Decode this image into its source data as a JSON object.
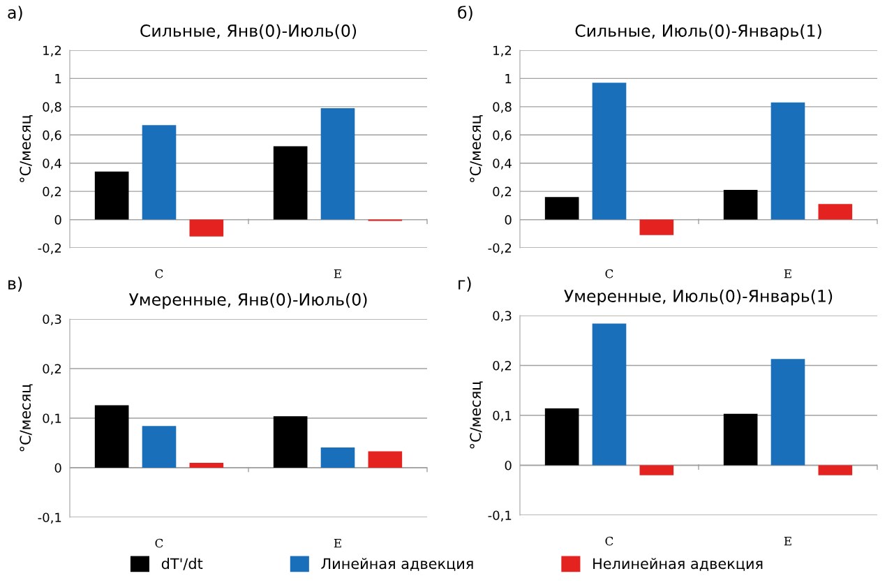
{
  "chart_data": [
    {
      "type": "bar",
      "title": "Сильные, Янв(0)-Июль(0)",
      "ylabel": "°C/месяц",
      "annotations": [
        "а)"
      ],
      "categories": [
        "C",
        "E"
      ],
      "grid": "y",
      "legend": "bottom",
      "ylim": [
        -0.2,
        1.2
      ],
      "yticks": [
        {
          "value": -0.2,
          "label": "-0,2"
        },
        0,
        {
          "value": 0.2,
          "label": "0,2"
        },
        {
          "value": 0.4,
          "label": "0,4"
        },
        {
          "value": 0.6,
          "label": "0,6"
        },
        {
          "value": 0.8,
          "label": "0,8"
        },
        1,
        {
          "value": 1.2,
          "label": "1,2"
        }
      ],
      "series": [
        {
          "name": "dT'/dt",
          "color": "#000000",
          "values": [
            0.34,
            0.52
          ]
        },
        {
          "name": "Линейная адвекция",
          "color": "#1a6fba",
          "values": [
            0.67,
            0.79
          ]
        },
        {
          "name": "Нелинейная адвекция",
          "color": "#e42320",
          "values": [
            -0.12,
            -0.01
          ]
        }
      ]
    },
    {
      "type": "bar",
      "title": "Сильные, Июль(0)-Январь(1)",
      "ylabel": "°C/месяц",
      "annotations": [
        "б)"
      ],
      "categories": [
        "C",
        "E"
      ],
      "grid": "y",
      "legend": false,
      "ylim": [
        -0.2,
        1.2
      ],
      "yticks": [
        {
          "value": -0.2,
          "label": "-0,2"
        },
        0,
        {
          "value": 0.2,
          "label": "0,2"
        },
        {
          "value": 0.4,
          "label": "0,4"
        },
        {
          "value": 0.6,
          "label": "0,6"
        },
        {
          "value": 0.8,
          "label": "0,8"
        },
        1,
        {
          "value": 1.2,
          "label": "1,2"
        }
      ],
      "series": [
        {
          "color": "#000000",
          "values": [
            0.16,
            0.21
          ]
        },
        {
          "color": "#1a6fba",
          "values": [
            0.97,
            0.83
          ]
        },
        {
          "color": "#e42320",
          "values": [
            -0.11,
            0.11
          ]
        }
      ]
    },
    {
      "type": "bar",
      "title": "Умеренные, Янв(0)-Июль(0)",
      "ylabel": "°C/месяц",
      "annotations": [
        "в)"
      ],
      "categories": [
        "C",
        "E"
      ],
      "grid": "y",
      "legend": false,
      "ylim": [
        -0.1,
        0.3
      ],
      "yticks": [
        {
          "value": -0.1,
          "label": "-0,1"
        },
        0,
        {
          "value": 0.1,
          "label": "0,1"
        },
        {
          "value": 0.2,
          "label": "0,2"
        },
        {
          "value": 0.3,
          "label": "0,3"
        }
      ],
      "series": [
        {
          "color": "#000000",
          "values": [
            0.126,
            0.104
          ]
        },
        {
          "color": "#1a6fba",
          "values": [
            0.084,
            0.041
          ]
        },
        {
          "color": "#e42320",
          "values": [
            0.01,
            0.033
          ]
        }
      ]
    },
    {
      "type": "bar",
      "title": "Умеренные, Июль(0)-Январь(1)",
      "ylabel": "°C/месяц",
      "annotations": [
        "г)"
      ],
      "categories": [
        "C",
        "E"
      ],
      "grid": "y",
      "legend": false,
      "ylim": [
        -0.1,
        0.3
      ],
      "yticks": [
        {
          "value": -0.1,
          "label": "-0,1"
        },
        0,
        {
          "value": 0.1,
          "label": "0,1"
        },
        {
          "value": 0.2,
          "label": "0,2"
        },
        {
          "value": 0.3,
          "label": "0,3"
        }
      ],
      "series": [
        {
          "color": "#000000",
          "values": [
            0.114,
            0.103
          ]
        },
        {
          "color": "#1a6fba",
          "values": [
            0.284,
            0.213
          ]
        },
        {
          "color": "#e42320",
          "values": [
            -0.02,
            -0.02
          ]
        }
      ]
    }
  ]
}
